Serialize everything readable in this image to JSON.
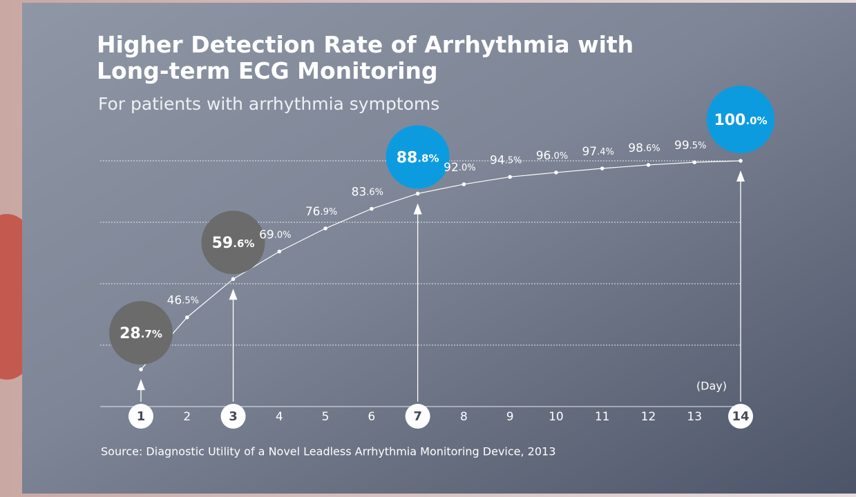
{
  "chart_data": {
    "type": "line",
    "title": "Higher Detection Rate of Arrhythmia with Long-term ECG Monitoring",
    "subtitle": "For patients with arrhythmia symptoms",
    "x_label": "(Day)",
    "source": "Source: Diagnostic Utility of a Novel Leadless Arrhythmia Monitoring Device, 2013",
    "categories": [
      "1",
      "2",
      "3",
      "4",
      "5",
      "6",
      "7",
      "8",
      "9",
      "10",
      "11",
      "12",
      "13",
      "14"
    ],
    "values": [
      28.7,
      46.5,
      59.6,
      69.0,
      76.9,
      83.6,
      88.8,
      92.0,
      94.5,
      96.0,
      97.4,
      98.6,
      99.5,
      100.0
    ],
    "value_labels": [
      "28.7%",
      "46.5%",
      "59.6%",
      "69.0%",
      "76.9%",
      "83.6%",
      "88.8%",
      "92.0%",
      "94.5%",
      "96.0%",
      "97.4%",
      "98.6%",
      "99.5%",
      "100.0%"
    ],
    "color": "#ffffff",
    "highlights": [
      "1",
      "3",
      "7",
      "14"
    ],
    "highlight_colors": [
      "#6b6b6b",
      "#6b6b6b",
      "#0d9be0",
      "#0d9be0"
    ],
    "ylim": [
      16,
      100
    ],
    "grid": true
  }
}
